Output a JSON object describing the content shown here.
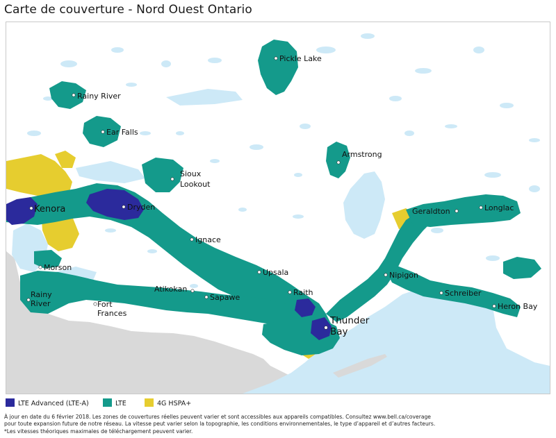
{
  "title": "Carte de couverture - Nord Ouest Ontario",
  "colors": {
    "lte_advanced": "#2b2a9c",
    "lte": "#149a8b",
    "hspa": "#e6cd2f",
    "water": "#cde9f7",
    "land_outside": "#d9d9d9",
    "land": "#ffffff"
  },
  "legend": [
    {
      "label": "LTE Advanced (LTE-A)",
      "color": "#2b2a9c"
    },
    {
      "label": "LTE",
      "color": "#149a8b"
    },
    {
      "label": "4G HSPA+",
      "color": "#e6cd2f"
    }
  ],
  "cities": [
    {
      "name": "Pickle Lake"
    },
    {
      "name": "Rainy River"
    },
    {
      "name": "Ear Falls"
    },
    {
      "name": "Sioux Lookout"
    },
    {
      "name": "Kenora"
    },
    {
      "name": "Dryden"
    },
    {
      "name": "Ignace"
    },
    {
      "name": "Armstrong"
    },
    {
      "name": "Geraldton"
    },
    {
      "name": "Longlac"
    },
    {
      "name": "Morson"
    },
    {
      "name": "Upsala"
    },
    {
      "name": "Nipigon"
    },
    {
      "name": "Atikokan"
    },
    {
      "name": "Raith"
    },
    {
      "name": "Schreiber"
    },
    {
      "name": "Sapawe"
    },
    {
      "name": "Rainy River"
    },
    {
      "name": "Fort Frances"
    },
    {
      "name": "Heron Bay"
    },
    {
      "name": "Thunder Bay"
    }
  ],
  "footnote": [
    "À jour en date du 6 février 2018. Les zones de couvertures réelles peuvent varier et sont accessibles aux appareils compatibles. Consultez www.bell.ca/coverage",
    "pour toute expansion future de notre réseau. La vitesse peut varier selon la topographie, les conditions environnementales, le type d’appareil et d’autres facteurs.",
    "*Les vitesses théoriques maximales de téléchargement peuvent varier."
  ]
}
